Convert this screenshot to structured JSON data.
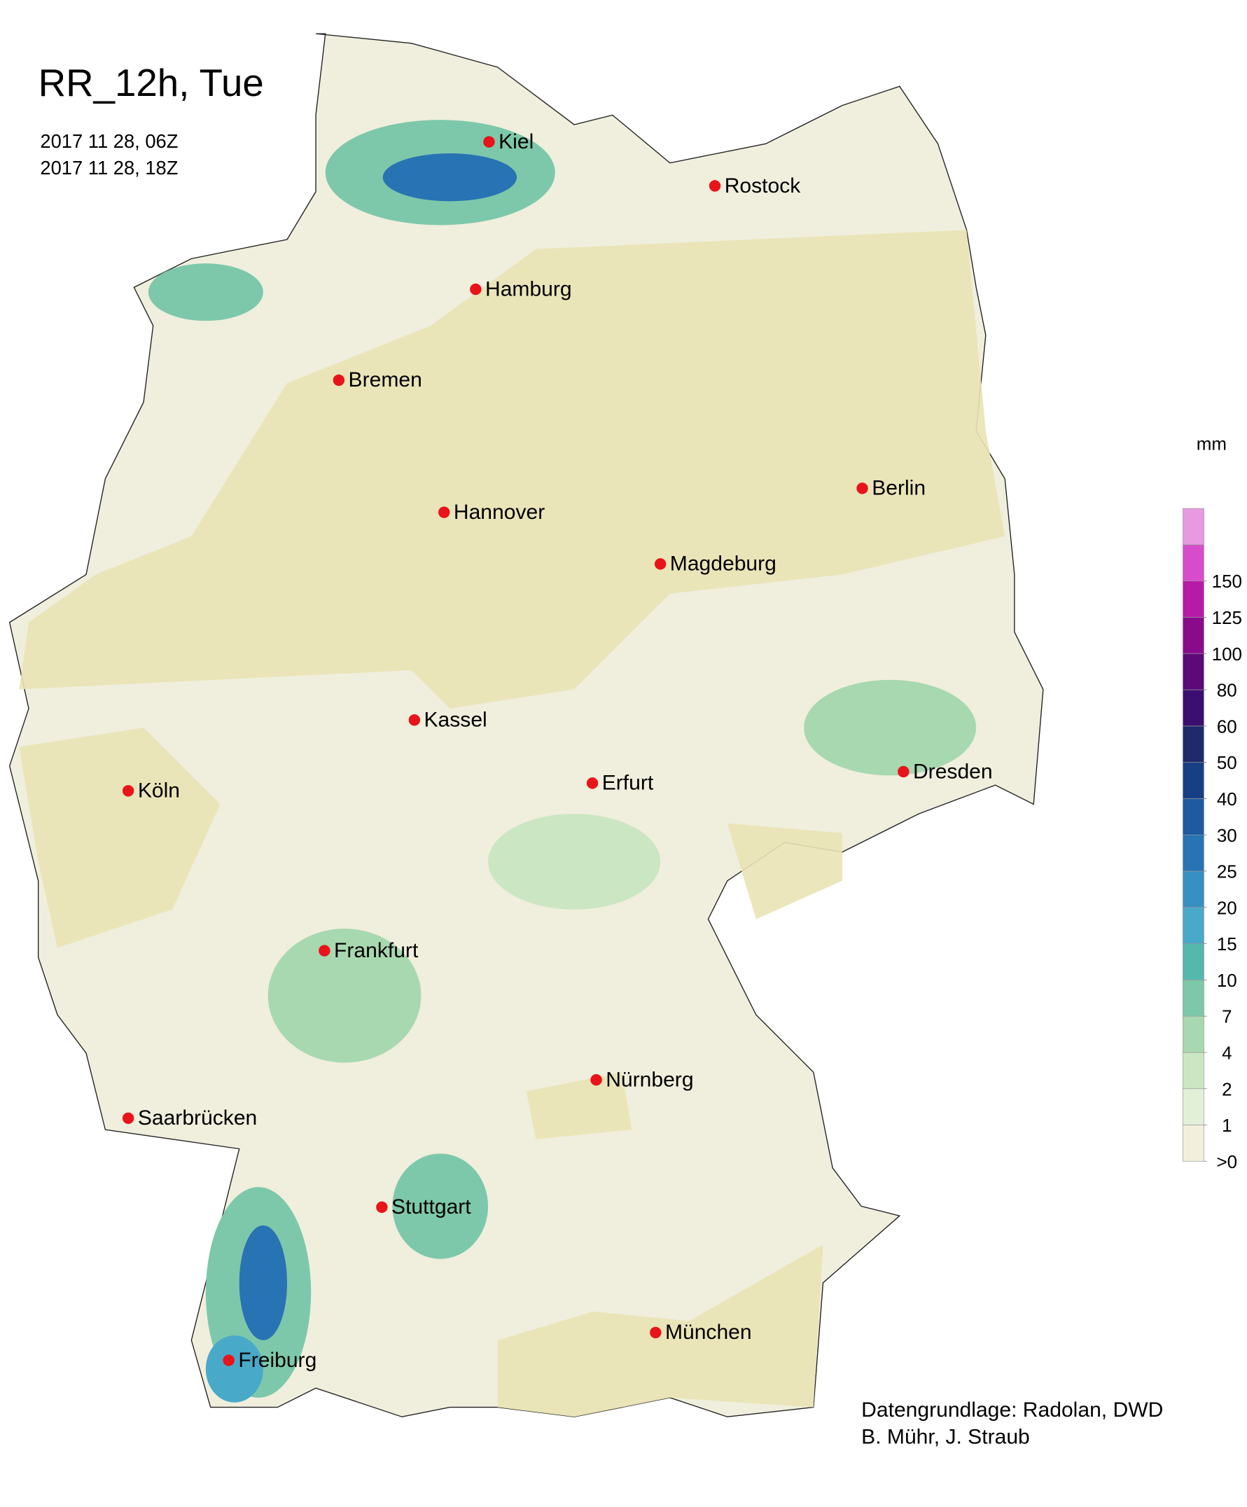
{
  "header": {
    "title": "RR_12h, Tue",
    "start": "2017 11 28, 06Z",
    "end": "2017 11 28, 18Z"
  },
  "cities": [
    "Kiel",
    "Rostock",
    "Hamburg",
    "Bremen",
    "Berlin",
    "Hannover",
    "Magdeburg",
    "Kassel",
    "Dresden",
    "Köln",
    "Erfurt",
    "Frankfurt",
    "Nürnberg",
    "Saarbrücken",
    "Stuttgart",
    "München",
    "Freiburg"
  ],
  "legend": {
    "unit": "mm",
    "ticks": [
      {
        "value": 0,
        "label": ">0"
      },
      1,
      2,
      4,
      7,
      10,
      15,
      20,
      25,
      30,
      40,
      50,
      60,
      80,
      100,
      125,
      150
    ],
    "colors": [
      "#f2efdc",
      "#e3f0d8",
      "#cbe6c3",
      "#a8d8b0",
      "#7dc8aa",
      "#55b8ae",
      "#48a9c9",
      "#3690c2",
      "#2873b3",
      "#1d5aa0",
      "#173f85",
      "#1f2a6b",
      "#3b0f70",
      "#5c0a7a",
      "#8a0a8c",
      "#b81aa8",
      "#d84ccc",
      "#e89ae0"
    ]
  },
  "credits": [
    "Datengrundlage: Radolan, DWD",
    "B. Mühr, J. Straub"
  ]
}
